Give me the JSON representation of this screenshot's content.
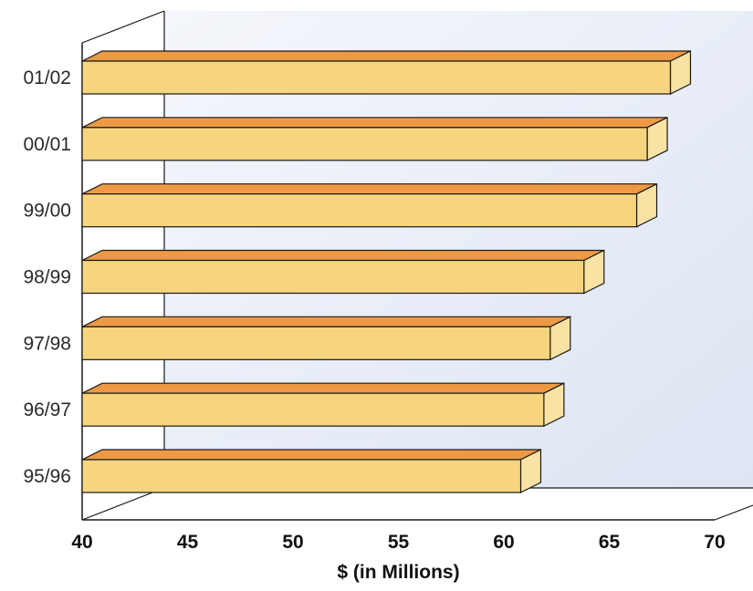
{
  "chart_data": {
    "type": "bar",
    "orientation": "horizontal",
    "style": "3d",
    "title": "",
    "xlabel": "$ (in Millions)",
    "ylabel": "",
    "categories": [
      "95/96",
      "96/97",
      "97/98",
      "98/99",
      "99/00",
      "00/01",
      "01/02"
    ],
    "values": [
      60.8,
      61.9,
      62.2,
      63.8,
      66.3,
      66.8,
      67.9
    ],
    "xlim": [
      40,
      70
    ],
    "xticks": [
      "40",
      "45",
      "50",
      "55",
      "60",
      "65",
      "70"
    ],
    "grid": false,
    "legend": "none",
    "colors": {
      "bar_front": "#f7d57e",
      "bar_top": "#ee9a45",
      "bar_side": "#f9e3a4",
      "outline": "#1a1a1a",
      "back_wall": "#e6ecf7"
    }
  }
}
